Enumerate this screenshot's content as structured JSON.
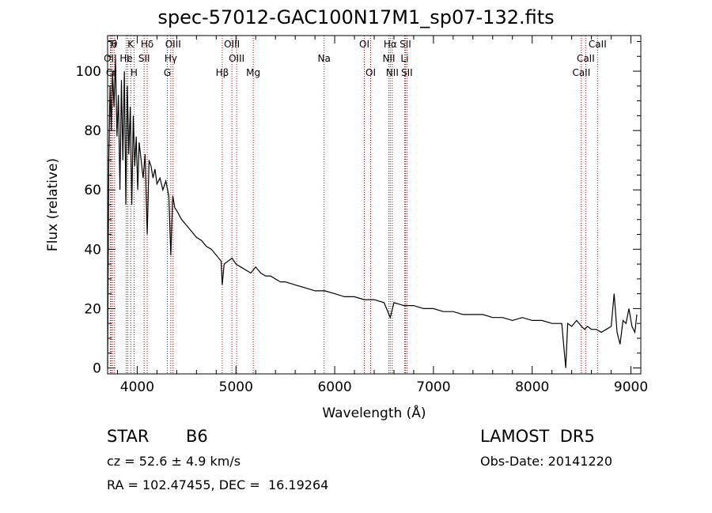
{
  "header": {
    "title": "spec-57012-GAC100N17M1_sp07-132.fits"
  },
  "info": {
    "class": "STAR",
    "subclass": "B6",
    "cz": "cz = 52.6 ± 4.9 km/s",
    "coords": "RA = 102.47455, DEC =  16.19264",
    "survey": "LAMOST  DR5",
    "obs_date": "Obs-Date: 20141220"
  },
  "chart_data": {
    "type": "line",
    "xlabel": "Wavelength (Å)",
    "ylabel": "Flux (relative)",
    "xlim": [
      3700,
      9100
    ],
    "ylim": [
      -2,
      112
    ],
    "xticks": [
      4000,
      5000,
      6000,
      7000,
      8000,
      9000
    ],
    "yticks": [
      0,
      20,
      40,
      60,
      80,
      100
    ],
    "grid": false,
    "line_color": "#000000",
    "marker_color": "#c00000",
    "series": [
      {
        "x": [
          3700,
          3712,
          3725,
          3738,
          3750,
          3765,
          3780,
          3795,
          3810,
          3825,
          3840,
          3855,
          3870,
          3885,
          3900,
          3915,
          3930,
          3945,
          3960,
          3975,
          3990,
          4005,
          4020,
          4040,
          4060,
          4080,
          4101,
          4120,
          4140,
          4160,
          4180,
          4200,
          4230,
          4260,
          4290,
          4320,
          4340,
          4360,
          4380,
          4400,
          4450,
          4500,
          4550,
          4600,
          4650,
          4700,
          4750,
          4800,
          4850,
          4861,
          4880,
          4920,
          4960,
          5000,
          5050,
          5100,
          5150,
          5200,
          5250,
          5300,
          5350,
          5400,
          5450,
          5500,
          5600,
          5700,
          5800,
          5900,
          6000,
          6100,
          6200,
          6300,
          6400,
          6500,
          6563,
          6600,
          6700,
          6800,
          6900,
          7000,
          7100,
          7200,
          7300,
          7400,
          7500,
          7600,
          7700,
          7800,
          7900,
          8000,
          8100,
          8200,
          8300,
          8340,
          8360,
          8400,
          8450,
          8500,
          8530,
          8560,
          8600,
          8650,
          8700,
          8750,
          8800,
          8830,
          8860,
          8890,
          8920,
          8950,
          8980,
          9010,
          9040,
          9060
        ],
        "y": [
          0,
          70,
          95,
          80,
          100,
          88,
          104,
          78,
          92,
          60,
          97,
          70,
          100,
          55,
          95,
          72,
          88,
          55,
          85,
          68,
          78,
          60,
          76,
          70,
          64,
          72,
          45,
          70,
          68,
          64,
          67,
          62,
          64,
          60,
          63,
          58,
          38,
          58,
          54,
          53,
          50,
          48,
          46,
          44,
          43,
          41,
          40,
          38,
          36,
          28,
          35,
          36,
          37,
          35,
          34,
          33,
          32,
          34,
          32,
          31,
          31,
          30,
          29,
          29,
          28,
          27,
          26,
          26,
          25,
          24,
          24,
          23,
          23,
          22,
          17,
          22,
          21,
          21,
          20,
          20,
          19,
          19,
          18,
          18,
          18,
          17,
          17,
          16,
          17,
          16,
          16,
          15,
          15,
          0,
          15,
          14,
          16,
          14,
          13,
          14,
          13,
          13,
          12,
          13,
          14,
          25,
          12,
          8,
          16,
          15,
          20,
          14,
          12,
          18
        ]
      }
    ],
    "annotations": [
      {
        "label": "Ti",
        "x": 3750
      },
      {
        "label": "θ",
        "x": 3770
      },
      {
        "label": "K",
        "x": 3934
      },
      {
        "label": "Hδ",
        "x": 4101
      },
      {
        "label": "OIII",
        "x": 4363
      },
      {
        "label": "OIII",
        "x": 4959
      },
      {
        "label": "OI",
        "x": 6300
      },
      {
        "label": "Hα",
        "x": 6563
      },
      {
        "label": "SII",
        "x": 6716
      },
      {
        "label": "CaII",
        "x": 8662
      },
      {
        "label": "OII",
        "x": 3727
      },
      {
        "label": "He",
        "x": 3889
      },
      {
        "label": "I",
        "x": 3905
      },
      {
        "label": "SII",
        "x": 4070
      },
      {
        "label": "Hγ",
        "x": 4340
      },
      {
        "label": "OIII",
        "x": 5007
      },
      {
        "label": "Na",
        "x": 5893
      },
      {
        "label": "NII",
        "x": 6548
      },
      {
        "label": "Li",
        "x": 6708
      },
      {
        "label": "CaII",
        "x": 8542
      },
      {
        "label": "Cr",
        "x": 3736
      },
      {
        "label": "H",
        "x": 3968
      },
      {
        "label": "G",
        "x": 4305
      },
      {
        "label": "Hβ",
        "x": 4861
      },
      {
        "label": "Mg",
        "x": 5175
      },
      {
        "label": "OI",
        "x": 6364
      },
      {
        "label": "NII",
        "x": 6583
      },
      {
        "label": "SII",
        "x": 6731
      },
      {
        "label": "CaII",
        "x": 8498
      }
    ]
  }
}
